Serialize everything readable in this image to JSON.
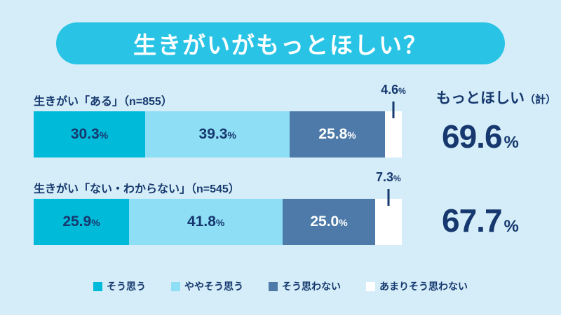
{
  "title": "生きがいがもっとほしい？",
  "unit": "%",
  "summary": {
    "header": "もっとほしい",
    "header_note": "（計）"
  },
  "colors": {
    "background": "#d5edf8",
    "title_pill": "#29c4e5",
    "title_text": "#ffffff",
    "text_navy": "#16386e",
    "agree": "#00bad9",
    "somewhat_agree": "#8edef5",
    "disagree": "#4d7aa8",
    "not_really": "#ffffff"
  },
  "chart_data": {
    "type": "bar",
    "subtype": "stacked-horizontal",
    "title": "生きがいがもっとほしい？",
    "categories": [
      "生きがい「ある」（n=855）",
      "生きがい「ない・わからない」（n=545）"
    ],
    "series": [
      {
        "name": "そう思う",
        "color": "#00bad9",
        "label_color": "#16386e",
        "callout": false,
        "values": [
          30.3,
          25.9
        ]
      },
      {
        "name": "ややそう思う",
        "color": "#8edef5",
        "label_color": "#16386e",
        "callout": false,
        "values": [
          39.3,
          41.8
        ]
      },
      {
        "name": "そう思わない",
        "color": "#4d7aa8",
        "label_color": "#ffffff",
        "callout": false,
        "values": [
          25.8,
          25.0
        ]
      },
      {
        "name": "あまりそう思わない",
        "color": "#ffffff",
        "label_color": "#16386e",
        "callout": true,
        "values": [
          4.6,
          7.3
        ]
      }
    ],
    "totals": {
      "label": "もっとほしい（計）",
      "values": [
        69.6,
        67.7
      ],
      "unit": "%"
    },
    "xlim": [
      0,
      100
    ],
    "grid": false,
    "legend_position": "bottom"
  }
}
